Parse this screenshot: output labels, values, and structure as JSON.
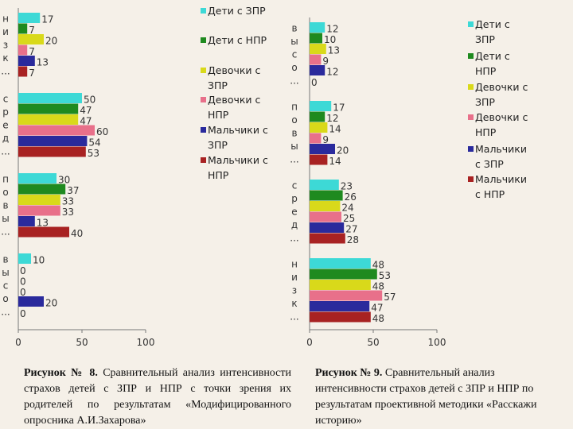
{
  "chart_data": [
    {
      "type": "bar",
      "orientation": "horizontal",
      "categories": [
        "низк...",
        "сред...",
        "повы...",
        "высо..."
      ],
      "series": [
        {
          "name": "Дети с ЗПР",
          "color": "#3dd9d6",
          "values": [
            17,
            50,
            30,
            10
          ]
        },
        {
          "name": "Дети с НПР",
          "color": "#1f8a1f",
          "values": [
            7,
            47,
            37,
            0
          ]
        },
        {
          "name": "Девочки с ЗПР",
          "color": "#d9d91a",
          "values": [
            20,
            47,
            33,
            0
          ]
        },
        {
          "name": "Девочки с НПР",
          "color": "#e8708a",
          "values": [
            7,
            60,
            33,
            0
          ]
        },
        {
          "name": "Мальчики с ЗПР",
          "color": "#2a2a9c",
          "values": [
            13,
            54,
            13,
            20
          ]
        },
        {
          "name": "Мальчики с НПР",
          "color": "#a82222",
          "values": [
            7,
            53,
            40,
            0
          ]
        }
      ],
      "xlim": [
        0,
        100
      ],
      "xticks": [
        0,
        50,
        100
      ],
      "legend_position": "right"
    },
    {
      "type": "bar",
      "orientation": "horizontal",
      "categories": [
        "высо...",
        "повы...",
        "сред...",
        "низк..."
      ],
      "series": [
        {
          "name": "Дети с ЗПР",
          "color": "#3dd9d6",
          "values": [
            12,
            17,
            23,
            48
          ]
        },
        {
          "name": "Дети с НПР",
          "color": "#1f8a1f",
          "values": [
            10,
            12,
            26,
            53
          ]
        },
        {
          "name": "Девочки с ЗПР",
          "color": "#d9d91a",
          "values": [
            13,
            14,
            24,
            48
          ]
        },
        {
          "name": "Девочки с НПР",
          "color": "#e8708a",
          "values": [
            9,
            9,
            25,
            57
          ]
        },
        {
          "name": "Мальчики с ЗПР",
          "color": "#2a2a9c",
          "values": [
            12,
            20,
            27,
            47
          ]
        },
        {
          "name": "Мальчики с НПР",
          "color": "#a82222",
          "values": [
            0,
            14,
            28,
            48
          ]
        }
      ],
      "xlim": [
        0,
        100
      ],
      "xticks": [
        0,
        50,
        100
      ],
      "legend_position": "right"
    }
  ],
  "captions": {
    "fig8_label": "Рисунок № 8.",
    "fig8_text": " Сравнительный анализ интенсивности страхов детей с ЗПР и НПР с точки зрения их родителей по результатам «Модифицированного опросника А.И.Захарова»",
    "fig9_label": "Рисунок № 9.",
    "fig9_text": " Сравнительный анализ интенсивности страхов детей с ЗПР и НПР по результатам проективной методики «Расскажи историю»"
  }
}
